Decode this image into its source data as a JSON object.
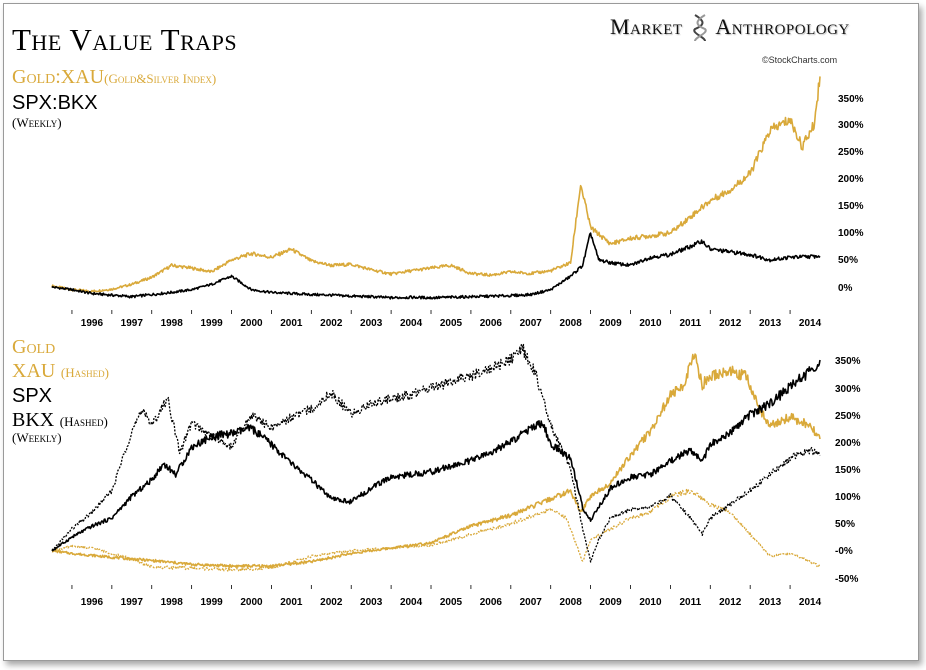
{
  "header": {
    "title": "The Value Traps",
    "brand_left": "Market",
    "brand_right": "Anthropology",
    "credit": "©StockCharts.com"
  },
  "colors": {
    "gold": "#d9a93a",
    "black": "#000000",
    "axis": "#000000"
  },
  "icons": {
    "brand": "dna-helix-icon"
  },
  "top_panel": {
    "label_1": "Gold:XAU",
    "label_1_small": "(Gold&Silver Index)",
    "label_2": "SPX:BKX",
    "label_3": "(Weekly)"
  },
  "bottom_panel": {
    "label_gold": "Gold",
    "label_xau": "XAU",
    "label_xau_small": "(Hashed)",
    "label_spx": "SPX",
    "label_bkx": "BKX",
    "label_bkx_small": "(Hashed)",
    "label_weekly": "(Weekly)"
  },
  "chart_data": [
    {
      "type": "line",
      "x_ticks": [
        "1996",
        "1997",
        "1998",
        "1999",
        "2000",
        "2001",
        "2002",
        "2003",
        "2004",
        "2005",
        "2006",
        "2007",
        "2008",
        "2009",
        "2010",
        "2011",
        "2012",
        "2013",
        "2014"
      ],
      "y_ticks": [
        "350%",
        "300%",
        "250%",
        "200%",
        "150%",
        "100%",
        "50%",
        "0%"
      ],
      "ylim": [
        -20,
        400
      ],
      "series": [
        {
          "name": "Gold:XAU",
          "color": "#d9a93a",
          "points": [
            [
              1995.5,
              2
            ],
            [
              1996,
              -5
            ],
            [
              1996.5,
              -8
            ],
            [
              1997,
              -4
            ],
            [
              1997.5,
              5
            ],
            [
              1998,
              18
            ],
            [
              1998.5,
              40
            ],
            [
              1999,
              35
            ],
            [
              1999.5,
              28
            ],
            [
              2000,
              50
            ],
            [
              2000.5,
              62
            ],
            [
              2001,
              55
            ],
            [
              2001.5,
              70
            ],
            [
              2002,
              48
            ],
            [
              2002.5,
              40
            ],
            [
              2003,
              42
            ],
            [
              2003.5,
              32
            ],
            [
              2004,
              24
            ],
            [
              2004.5,
              30
            ],
            [
              2005,
              35
            ],
            [
              2005.5,
              40
            ],
            [
              2006,
              25
            ],
            [
              2006.5,
              22
            ],
            [
              2007,
              28
            ],
            [
              2007.5,
              25
            ],
            [
              2008,
              30
            ],
            [
              2008.5,
              45
            ],
            [
              2008.75,
              190
            ],
            [
              2009,
              110
            ],
            [
              2009.5,
              80
            ],
            [
              2010,
              90
            ],
            [
              2010.5,
              95
            ],
            [
              2011,
              100
            ],
            [
              2011.5,
              130
            ],
            [
              2012,
              160
            ],
            [
              2012.5,
              180
            ],
            [
              2013,
              210
            ],
            [
              2013.5,
              290
            ],
            [
              2014,
              310
            ],
            [
              2014.3,
              260
            ],
            [
              2014.6,
              300
            ],
            [
              2014.75,
              390
            ]
          ]
        },
        {
          "name": "SPX:BKX",
          "color": "#000000",
          "points": [
            [
              1995.5,
              0
            ],
            [
              1996,
              -5
            ],
            [
              1996.5,
              -12
            ],
            [
              1997,
              -15
            ],
            [
              1997.5,
              -18
            ],
            [
              1998,
              -14
            ],
            [
              1998.5,
              -10
            ],
            [
              1999,
              -5
            ],
            [
              1999.5,
              5
            ],
            [
              2000,
              20
            ],
            [
              2000.5,
              -5
            ],
            [
              2001,
              -10
            ],
            [
              2001.5,
              -12
            ],
            [
              2002,
              -14
            ],
            [
              2002.5,
              -15
            ],
            [
              2003,
              -17
            ],
            [
              2003.5,
              -18
            ],
            [
              2004,
              -20
            ],
            [
              2004.5,
              -19
            ],
            [
              2005,
              -20
            ],
            [
              2005.5,
              -19
            ],
            [
              2006,
              -18
            ],
            [
              2006.5,
              -17
            ],
            [
              2007,
              -16
            ],
            [
              2007.5,
              -14
            ],
            [
              2008,
              -5
            ],
            [
              2008.5,
              20
            ],
            [
              2008.8,
              40
            ],
            [
              2009,
              100
            ],
            [
              2009.2,
              50
            ],
            [
              2009.5,
              45
            ],
            [
              2010,
              40
            ],
            [
              2010.5,
              55
            ],
            [
              2011,
              60
            ],
            [
              2011.5,
              75
            ],
            [
              2011.8,
              85
            ],
            [
              2012,
              70
            ],
            [
              2012.5,
              65
            ],
            [
              2013,
              60
            ],
            [
              2013.5,
              50
            ],
            [
              2014,
              55
            ],
            [
              2014.75,
              57
            ]
          ]
        }
      ]
    },
    {
      "type": "line",
      "x_ticks": [
        "1996",
        "1997",
        "1998",
        "1999",
        "2000",
        "2001",
        "2002",
        "2003",
        "2004",
        "2005",
        "2006",
        "2007",
        "2008",
        "2009",
        "2010",
        "2011",
        "2012",
        "2013",
        "2014"
      ],
      "y_ticks": [
        "350%",
        "300%",
        "250%",
        "200%",
        "150%",
        "100%",
        "50%",
        "-0%",
        "-50%"
      ],
      "ylim": [
        -70,
        390
      ],
      "series": [
        {
          "name": "Gold",
          "color": "#d9a93a",
          "points": [
            [
              1995.5,
              0
            ],
            [
              1996,
              -5
            ],
            [
              1997,
              -12
            ],
            [
              1998,
              -18
            ],
            [
              1999,
              -25
            ],
            [
              2000,
              -28
            ],
            [
              2001,
              -28
            ],
            [
              2002,
              -20
            ],
            [
              2003,
              -5
            ],
            [
              2004,
              5
            ],
            [
              2005,
              15
            ],
            [
              2006,
              45
            ],
            [
              2006.5,
              55
            ],
            [
              2007,
              65
            ],
            [
              2008,
              95
            ],
            [
              2008.5,
              110
            ],
            [
              2008.75,
              70
            ],
            [
              2009,
              100
            ],
            [
              2009.5,
              125
            ],
            [
              2010,
              175
            ],
            [
              2010.5,
              220
            ],
            [
              2011,
              285
            ],
            [
              2011.3,
              300
            ],
            [
              2011.6,
              360
            ],
            [
              2011.8,
              305
            ],
            [
              2012,
              320
            ],
            [
              2012.5,
              330
            ],
            [
              2012.9,
              320
            ],
            [
              2013.2,
              265
            ],
            [
              2013.5,
              230
            ],
            [
              2014,
              245
            ],
            [
              2014.5,
              230
            ],
            [
              2014.75,
              205
            ]
          ]
        },
        {
          "name": "XAU",
          "color": "#d9a93a",
          "dashed": true,
          "points": [
            [
              1995.5,
              0
            ],
            [
              1996,
              8
            ],
            [
              1996.5,
              5
            ],
            [
              1997,
              -5
            ],
            [
              1997.5,
              -15
            ],
            [
              1998,
              -30
            ],
            [
              1999,
              -32
            ],
            [
              2000,
              -35
            ],
            [
              2001,
              -32
            ],
            [
              2002,
              -10
            ],
            [
              2003,
              0
            ],
            [
              2004,
              5
            ],
            [
              2005,
              10
            ],
            [
              2006,
              30
            ],
            [
              2006.5,
              40
            ],
            [
              2007,
              50
            ],
            [
              2008,
              75
            ],
            [
              2008.4,
              60
            ],
            [
              2008.8,
              -20
            ],
            [
              2009,
              20
            ],
            [
              2009.5,
              40
            ],
            [
              2010,
              60
            ],
            [
              2010.5,
              70
            ],
            [
              2011,
              100
            ],
            [
              2011.5,
              110
            ],
            [
              2012,
              85
            ],
            [
              2012.5,
              70
            ],
            [
              2013,
              30
            ],
            [
              2013.5,
              -10
            ],
            [
              2014,
              -5
            ],
            [
              2014.5,
              -20
            ],
            [
              2014.75,
              -30
            ]
          ]
        },
        {
          "name": "SPX",
          "color": "#000000",
          "points": [
            [
              1995.5,
              0
            ],
            [
              1996,
              25
            ],
            [
              1996.5,
              45
            ],
            [
              1997,
              60
            ],
            [
              1997.5,
              100
            ],
            [
              1998,
              130
            ],
            [
              1998.3,
              160
            ],
            [
              1998.6,
              140
            ],
            [
              1999,
              190
            ],
            [
              1999.5,
              210
            ],
            [
              2000,
              215
            ],
            [
              2000.5,
              225
            ],
            [
              2001,
              195
            ],
            [
              2001.5,
              160
            ],
            [
              2002,
              130
            ],
            [
              2002.5,
              95
            ],
            [
              2003,
              90
            ],
            [
              2003.5,
              115
            ],
            [
              2004,
              135
            ],
            [
              2004.5,
              140
            ],
            [
              2005,
              145
            ],
            [
              2005.5,
              155
            ],
            [
              2006,
              165
            ],
            [
              2006.5,
              180
            ],
            [
              2007,
              200
            ],
            [
              2007.5,
              225
            ],
            [
              2007.8,
              235
            ],
            [
              2008,
              195
            ],
            [
              2008.5,
              170
            ],
            [
              2008.8,
              80
            ],
            [
              2009,
              55
            ],
            [
              2009.2,
              80
            ],
            [
              2009.5,
              115
            ],
            [
              2010,
              135
            ],
            [
              2010.5,
              140
            ],
            [
              2011,
              165
            ],
            [
              2011.5,
              185
            ],
            [
              2011.8,
              165
            ],
            [
              2012,
              195
            ],
            [
              2012.5,
              215
            ],
            [
              2013,
              250
            ],
            [
              2013.5,
              270
            ],
            [
              2014,
              300
            ],
            [
              2014.5,
              330
            ],
            [
              2014.75,
              350
            ]
          ]
        },
        {
          "name": "BKX",
          "color": "#000000",
          "dashed": true,
          "points": [
            [
              1995.5,
              0
            ],
            [
              1996,
              40
            ],
            [
              1996.5,
              70
            ],
            [
              1997,
              110
            ],
            [
              1997.5,
              220
            ],
            [
              1997.8,
              260
            ],
            [
              1998,
              230
            ],
            [
              1998.4,
              280
            ],
            [
              1998.7,
              180
            ],
            [
              1999,
              235
            ],
            [
              1999.5,
              210
            ],
            [
              2000,
              190
            ],
            [
              2000.5,
              250
            ],
            [
              2001,
              225
            ],
            [
              2001.5,
              245
            ],
            [
              2002,
              260
            ],
            [
              2002.5,
              290
            ],
            [
              2003,
              250
            ],
            [
              2003.5,
              270
            ],
            [
              2004,
              280
            ],
            [
              2004.5,
              285
            ],
            [
              2005,
              300
            ],
            [
              2005.5,
              310
            ],
            [
              2006,
              320
            ],
            [
              2006.5,
              335
            ],
            [
              2007,
              350
            ],
            [
              2007.3,
              370
            ],
            [
              2007.6,
              330
            ],
            [
              2008,
              230
            ],
            [
              2008.5,
              150
            ],
            [
              2008.8,
              40
            ],
            [
              2009,
              -20
            ],
            [
              2009.2,
              20
            ],
            [
              2009.5,
              60
            ],
            [
              2010,
              75
            ],
            [
              2010.5,
              80
            ],
            [
              2011,
              100
            ],
            [
              2011.5,
              60
            ],
            [
              2011.8,
              30
            ],
            [
              2012,
              60
            ],
            [
              2012.5,
              85
            ],
            [
              2013,
              110
            ],
            [
              2013.5,
              140
            ],
            [
              2014,
              170
            ],
            [
              2014.5,
              185
            ],
            [
              2014.75,
              175
            ]
          ]
        }
      ]
    }
  ]
}
